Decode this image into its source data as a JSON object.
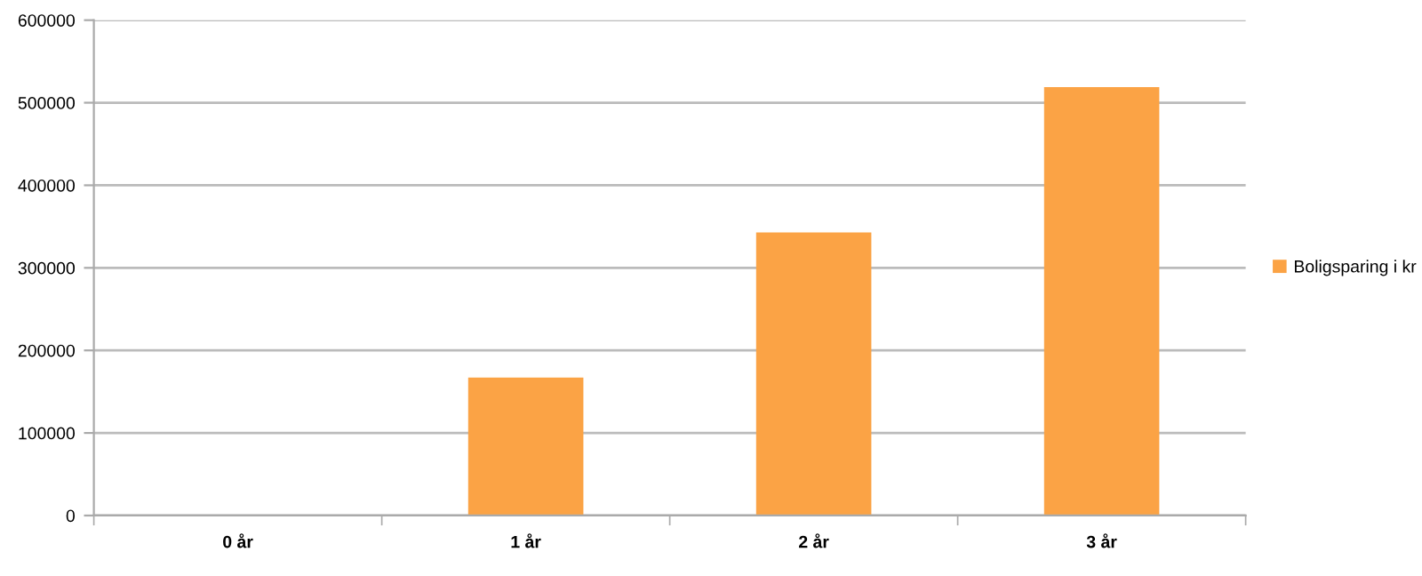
{
  "chart_data": {
    "type": "bar",
    "categories": [
      "0 år",
      "1 år",
      "2 år",
      "3 år"
    ],
    "series": [
      {
        "name": "Boligsparing i kr",
        "color": "#fba345",
        "values": [
          0,
          167000,
          343000,
          519000
        ]
      }
    ],
    "ylim": [
      0,
      600000
    ],
    "yticks": [
      0,
      100000,
      200000,
      300000,
      400000,
      500000,
      600000
    ],
    "grid": "y",
    "legend": "right"
  }
}
